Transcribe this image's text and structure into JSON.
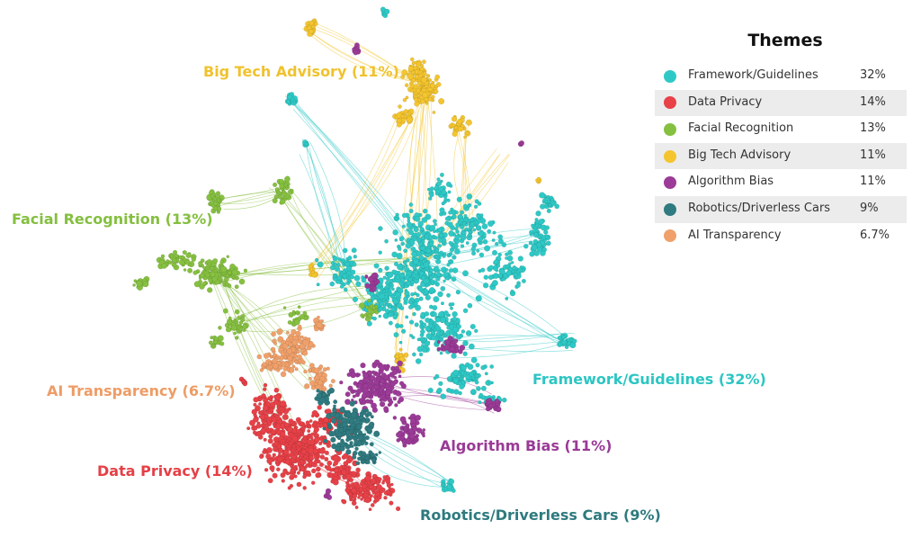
{
  "legend": {
    "title": "Themes",
    "items": [
      {
        "label": "Framework/Guidelines",
        "pct": "32%",
        "color": "#2ec9c6"
      },
      {
        "label": "Data Privacy",
        "pct": "14%",
        "color": "#e84148"
      },
      {
        "label": "Facial Recognition",
        "pct": "13%",
        "color": "#86c040"
      },
      {
        "label": "Big Tech Advisory",
        "pct": "11%",
        "color": "#f4c52e"
      },
      {
        "label": "Algorithm Bias",
        "pct": "11%",
        "color": "#9c3b98"
      },
      {
        "label": "Robotics/Driverless Cars",
        "pct": "9%",
        "color": "#2f7b80"
      },
      {
        "label": "AI Transparency",
        "pct": "6.7%",
        "color": "#f0a06a"
      }
    ]
  },
  "labels": {
    "big_tech": "Big Tech Advisory (11%)",
    "facial": "Facial Recognition (13%)",
    "ai_transparency": "AI Transparency (6.7%)",
    "framework": "Framework/Guidelines (32%)",
    "algorithm_bias": "Algorithm Bias (11%)",
    "data_privacy": "Data Privacy (14%)",
    "robotics": "Robotics/Driverless Cars (9%)"
  }
}
